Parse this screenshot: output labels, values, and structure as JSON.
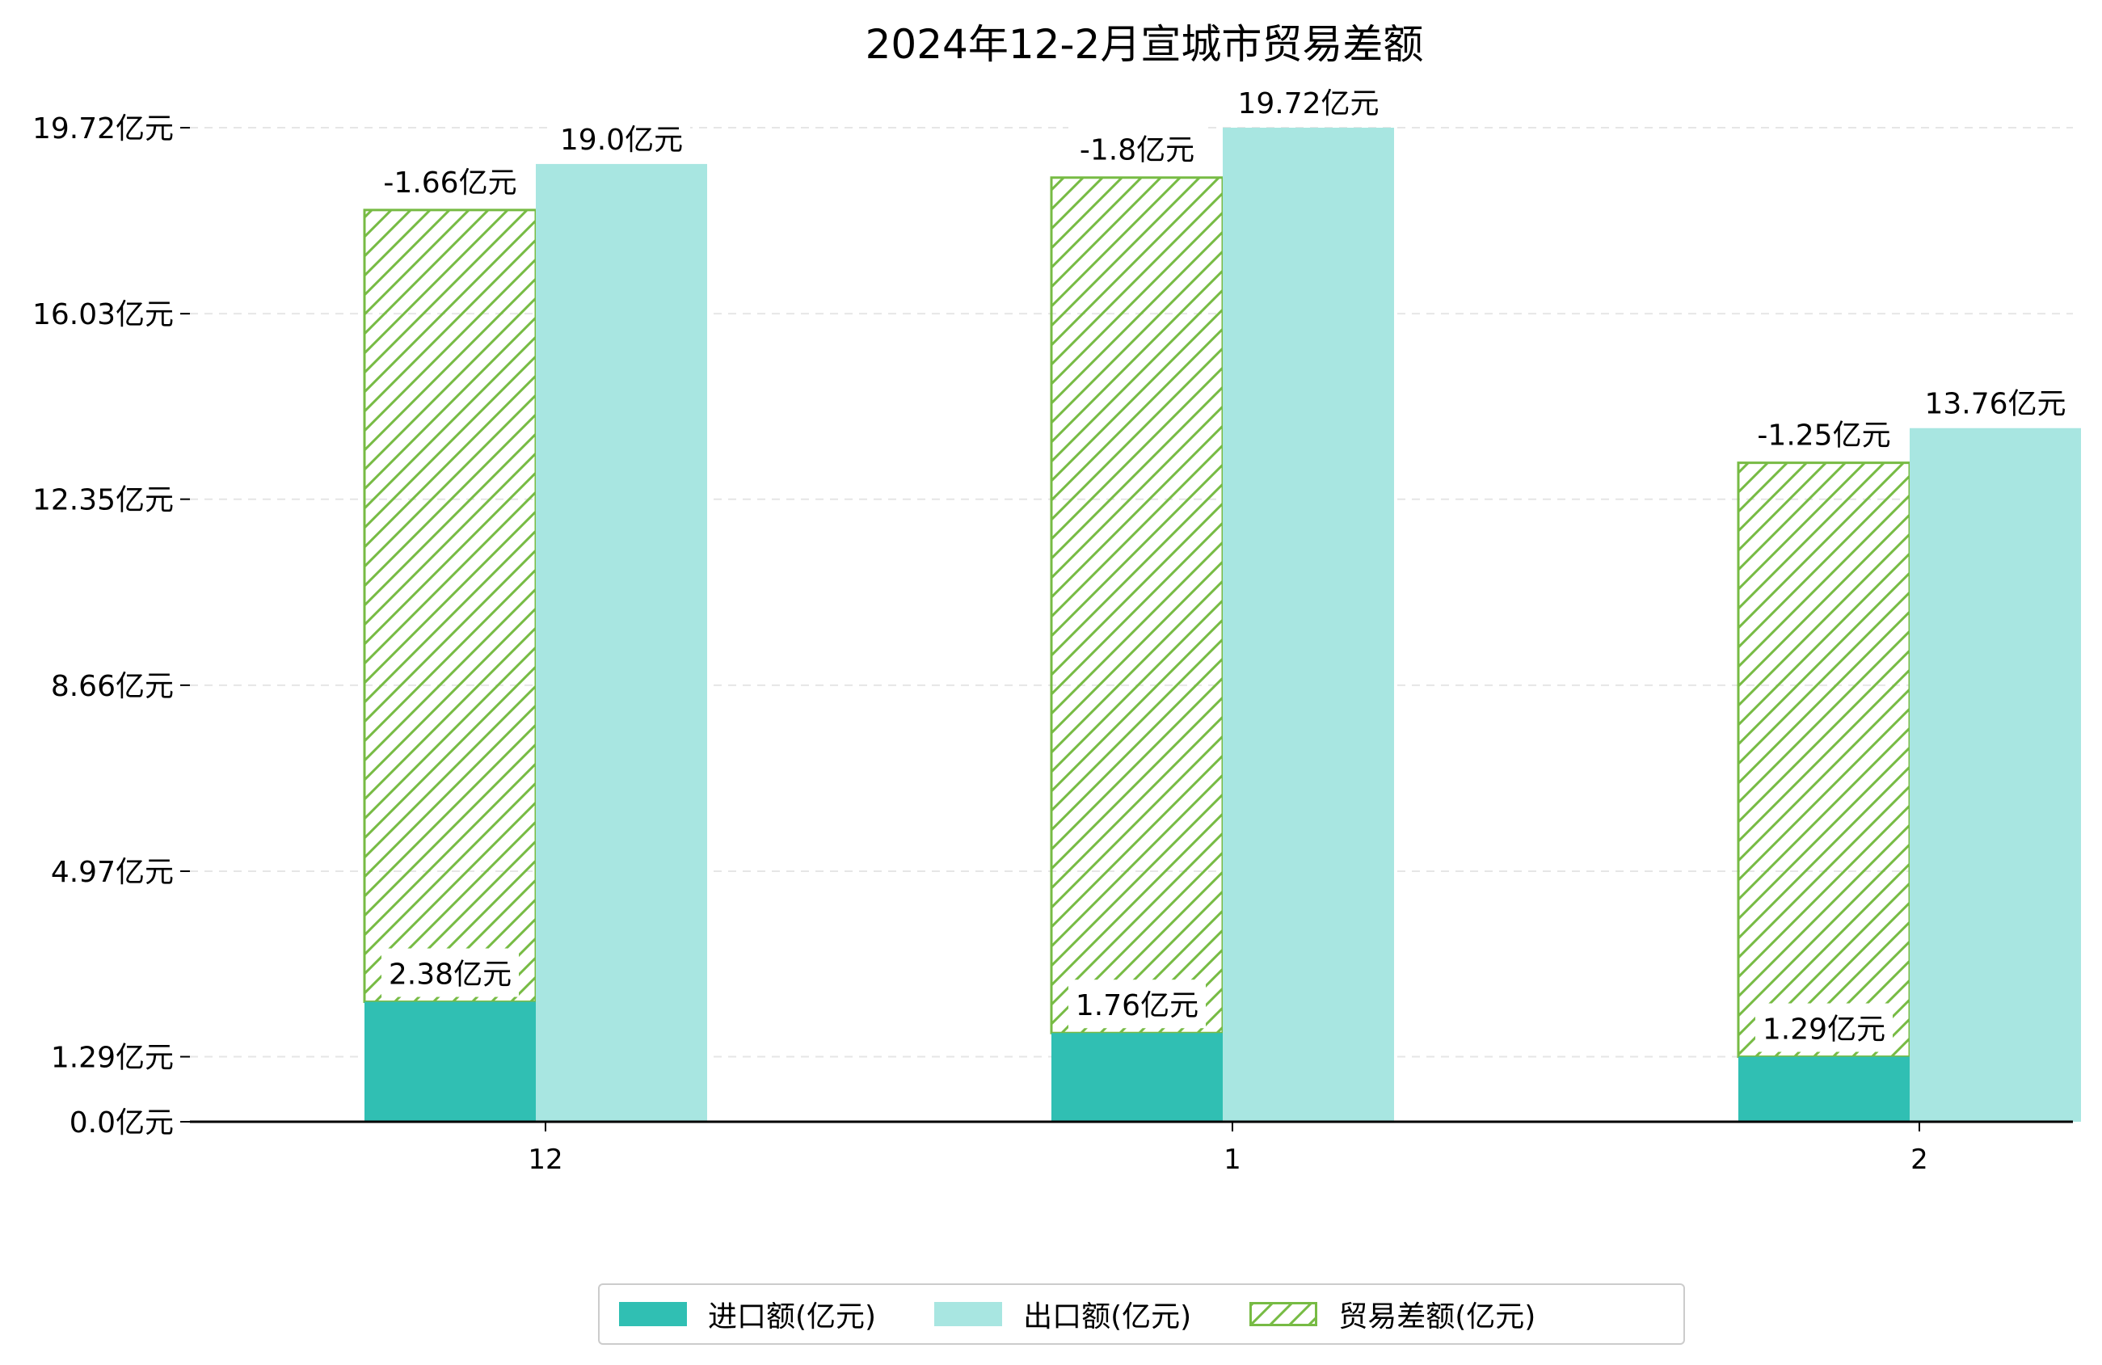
{
  "chart_data": {
    "type": "bar",
    "title": "2024年12-2月宣城市贸易差额",
    "categories": [
      "12",
      "1",
      "2"
    ],
    "series": [
      {
        "name": "进口额(亿元)",
        "values": [
          2.38,
          1.76,
          1.29
        ],
        "labels": [
          "2.38亿元",
          "1.76亿元",
          "1.29亿元"
        ],
        "color": "#30bfb3",
        "style": "solid"
      },
      {
        "name": "出口额(亿元)",
        "values": [
          19.0,
          19.72,
          13.76
        ],
        "labels": [
          "19.0亿元",
          "19.72亿元",
          "13.76亿元"
        ],
        "color": "#a8e6e1",
        "style": "solid"
      },
      {
        "name": "贸易差额(亿元)",
        "values": [
          -1.66,
          -1.8,
          -1.25
        ],
        "labels": [
          "-1.66亿元",
          "-1.8亿元",
          "-1.25亿元"
        ],
        "color": "#77bb44",
        "style": "hatched"
      }
    ],
    "y_ticks": [
      "0.0亿元",
      "1.29亿元",
      "4.97亿元",
      "8.66亿元",
      "12.35亿元",
      "16.03亿元",
      "19.72亿元"
    ],
    "y_tick_values": [
      0.0,
      1.29,
      4.97,
      8.66,
      12.35,
      16.03,
      19.72
    ],
    "ylim": [
      0,
      19.72
    ],
    "grid": "horizontal-dashed",
    "legend_position": "bottom-center"
  }
}
